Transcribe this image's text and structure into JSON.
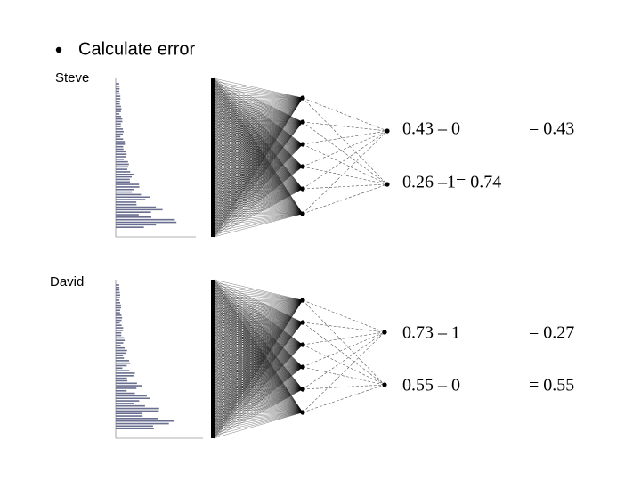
{
  "bullet": "Calculate error",
  "examples": [
    {
      "name": "Steve",
      "outputs": [
        {
          "expression": "0.43 – 0",
          "result": "= 0.43"
        },
        {
          "expression": "0.26 –1= 0.74"
        }
      ]
    },
    {
      "name": "David",
      "outputs": [
        {
          "expression": "0.73 – 1",
          "result": "= 0.27"
        },
        {
          "expression": "0.55 – 0",
          "result": "= 0.55"
        }
      ]
    }
  ]
}
